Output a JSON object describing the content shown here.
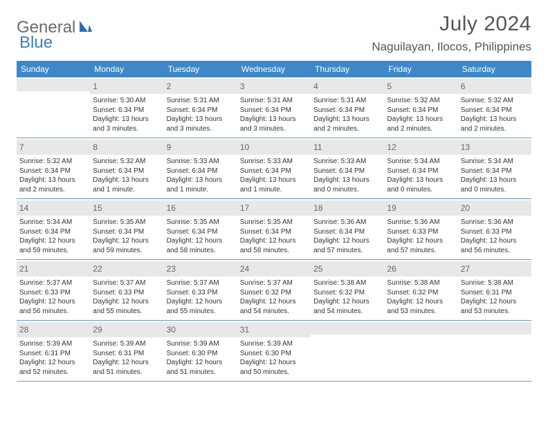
{
  "brand": {
    "part1": "General",
    "part2": "Blue"
  },
  "title": "July 2024",
  "location": "Naguilayan, Ilocos, Philippines",
  "colors": {
    "header_bg": "#3e88c9",
    "header_text": "#ffffff",
    "daynum_bg": "#e8e8e8",
    "daynum_text": "#666666",
    "body_text": "#333333",
    "rule": "#6699bb",
    "title_text": "#555555",
    "brand_gray": "#6a6a6a",
    "brand_blue": "#3a7fc2"
  },
  "weekdays": [
    "Sunday",
    "Monday",
    "Tuesday",
    "Wednesday",
    "Thursday",
    "Friday",
    "Saturday"
  ],
  "weeks": [
    [
      null,
      {
        "n": "1",
        "sr": "Sunrise: 5:30 AM",
        "ss": "Sunset: 6:34 PM",
        "dl": "Daylight: 13 hours and 3 minutes."
      },
      {
        "n": "2",
        "sr": "Sunrise: 5:31 AM",
        "ss": "Sunset: 6:34 PM",
        "dl": "Daylight: 13 hours and 3 minutes."
      },
      {
        "n": "3",
        "sr": "Sunrise: 5:31 AM",
        "ss": "Sunset: 6:34 PM",
        "dl": "Daylight: 13 hours and 3 minutes."
      },
      {
        "n": "4",
        "sr": "Sunrise: 5:31 AM",
        "ss": "Sunset: 6:34 PM",
        "dl": "Daylight: 13 hours and 2 minutes."
      },
      {
        "n": "5",
        "sr": "Sunrise: 5:32 AM",
        "ss": "Sunset: 6:34 PM",
        "dl": "Daylight: 13 hours and 2 minutes."
      },
      {
        "n": "6",
        "sr": "Sunrise: 5:32 AM",
        "ss": "Sunset: 6:34 PM",
        "dl": "Daylight: 13 hours and 2 minutes."
      }
    ],
    [
      {
        "n": "7",
        "sr": "Sunrise: 5:32 AM",
        "ss": "Sunset: 6:34 PM",
        "dl": "Daylight: 13 hours and 2 minutes."
      },
      {
        "n": "8",
        "sr": "Sunrise: 5:32 AM",
        "ss": "Sunset: 6:34 PM",
        "dl": "Daylight: 13 hours and 1 minute."
      },
      {
        "n": "9",
        "sr": "Sunrise: 5:33 AM",
        "ss": "Sunset: 6:34 PM",
        "dl": "Daylight: 13 hours and 1 minute."
      },
      {
        "n": "10",
        "sr": "Sunrise: 5:33 AM",
        "ss": "Sunset: 6:34 PM",
        "dl": "Daylight: 13 hours and 1 minute."
      },
      {
        "n": "11",
        "sr": "Sunrise: 5:33 AM",
        "ss": "Sunset: 6:34 PM",
        "dl": "Daylight: 13 hours and 0 minutes."
      },
      {
        "n": "12",
        "sr": "Sunrise: 5:34 AM",
        "ss": "Sunset: 6:34 PM",
        "dl": "Daylight: 13 hours and 0 minutes."
      },
      {
        "n": "13",
        "sr": "Sunrise: 5:34 AM",
        "ss": "Sunset: 6:34 PM",
        "dl": "Daylight: 13 hours and 0 minutes."
      }
    ],
    [
      {
        "n": "14",
        "sr": "Sunrise: 5:34 AM",
        "ss": "Sunset: 6:34 PM",
        "dl": "Daylight: 12 hours and 59 minutes."
      },
      {
        "n": "15",
        "sr": "Sunrise: 5:35 AM",
        "ss": "Sunset: 6:34 PM",
        "dl": "Daylight: 12 hours and 59 minutes."
      },
      {
        "n": "16",
        "sr": "Sunrise: 5:35 AM",
        "ss": "Sunset: 6:34 PM",
        "dl": "Daylight: 12 hours and 58 minutes."
      },
      {
        "n": "17",
        "sr": "Sunrise: 5:35 AM",
        "ss": "Sunset: 6:34 PM",
        "dl": "Daylight: 12 hours and 58 minutes."
      },
      {
        "n": "18",
        "sr": "Sunrise: 5:36 AM",
        "ss": "Sunset: 6:34 PM",
        "dl": "Daylight: 12 hours and 57 minutes."
      },
      {
        "n": "19",
        "sr": "Sunrise: 5:36 AM",
        "ss": "Sunset: 6:33 PM",
        "dl": "Daylight: 12 hours and 57 minutes."
      },
      {
        "n": "20",
        "sr": "Sunrise: 5:36 AM",
        "ss": "Sunset: 6:33 PM",
        "dl": "Daylight: 12 hours and 56 minutes."
      }
    ],
    [
      {
        "n": "21",
        "sr": "Sunrise: 5:37 AM",
        "ss": "Sunset: 6:33 PM",
        "dl": "Daylight: 12 hours and 56 minutes."
      },
      {
        "n": "22",
        "sr": "Sunrise: 5:37 AM",
        "ss": "Sunset: 6:33 PM",
        "dl": "Daylight: 12 hours and 55 minutes."
      },
      {
        "n": "23",
        "sr": "Sunrise: 5:37 AM",
        "ss": "Sunset: 6:33 PM",
        "dl": "Daylight: 12 hours and 55 minutes."
      },
      {
        "n": "24",
        "sr": "Sunrise: 5:37 AM",
        "ss": "Sunset: 6:32 PM",
        "dl": "Daylight: 12 hours and 54 minutes."
      },
      {
        "n": "25",
        "sr": "Sunrise: 5:38 AM",
        "ss": "Sunset: 6:32 PM",
        "dl": "Daylight: 12 hours and 54 minutes."
      },
      {
        "n": "26",
        "sr": "Sunrise: 5:38 AM",
        "ss": "Sunset: 6:32 PM",
        "dl": "Daylight: 12 hours and 53 minutes."
      },
      {
        "n": "27",
        "sr": "Sunrise: 5:38 AM",
        "ss": "Sunset: 6:31 PM",
        "dl": "Daylight: 12 hours and 53 minutes."
      }
    ],
    [
      {
        "n": "28",
        "sr": "Sunrise: 5:39 AM",
        "ss": "Sunset: 6:31 PM",
        "dl": "Daylight: 12 hours and 52 minutes."
      },
      {
        "n": "29",
        "sr": "Sunrise: 5:39 AM",
        "ss": "Sunset: 6:31 PM",
        "dl": "Daylight: 12 hours and 51 minutes."
      },
      {
        "n": "30",
        "sr": "Sunrise: 5:39 AM",
        "ss": "Sunset: 6:30 PM",
        "dl": "Daylight: 12 hours and 51 minutes."
      },
      {
        "n": "31",
        "sr": "Sunrise: 5:39 AM",
        "ss": "Sunset: 6:30 PM",
        "dl": "Daylight: 12 hours and 50 minutes."
      },
      null,
      null,
      null
    ]
  ]
}
